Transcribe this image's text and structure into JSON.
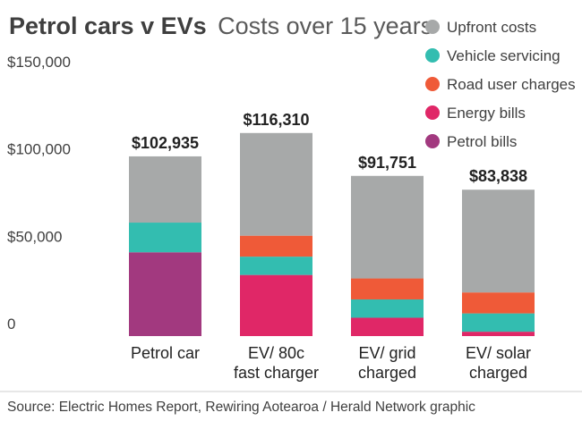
{
  "chart_data": {
    "type": "bar",
    "stacked": true,
    "title": "Petrol cars v EVs",
    "subtitle": "Costs over 15 years",
    "categories": [
      [
        "Petrol car"
      ],
      [
        "EV/ 80c",
        "fast charger"
      ],
      [
        "EV/ grid",
        "charged"
      ],
      [
        "EV/ solar",
        "charged"
      ]
    ],
    "totals": [
      102935,
      116310,
      91751,
      83838
    ],
    "total_labels": [
      "$102,935",
      "$116,310",
      "$91,751",
      "$83,838"
    ],
    "series": [
      {
        "name": "Petrol bills",
        "color": "#a2397f",
        "values": [
          48000,
          0,
          0,
          0
        ]
      },
      {
        "name": "Energy bills",
        "color": "#e02767",
        "values": [
          0,
          35000,
          10500,
          2500
        ]
      },
      {
        "name": "Vehicle servicing",
        "color": "#33bdb0",
        "values": [
          17000,
          10500,
          10500,
          10500
        ]
      },
      {
        "name": "Road user charges",
        "color": "#ef5a38",
        "values": [
          0,
          12000,
          12000,
          12000
        ]
      },
      {
        "name": "Upfront costs",
        "color": "#a7a9a9",
        "values": [
          37935,
          58810,
          58751,
          58838
        ]
      }
    ],
    "legend_order": [
      "Upfront costs",
      "Vehicle servicing",
      "Road user charges",
      "Energy bills",
      "Petrol bills"
    ],
    "legend_position": "top-right",
    "y_ticks": [
      0,
      50000,
      100000,
      150000
    ],
    "y_tick_labels": [
      "0",
      "$50,000",
      "$100,000",
      "$150,000"
    ],
    "ylim": [
      0,
      150000
    ],
    "grid": false,
    "source": "Source: Electric Homes Report, Rewiring Aotearoa / Herald Network graphic"
  }
}
